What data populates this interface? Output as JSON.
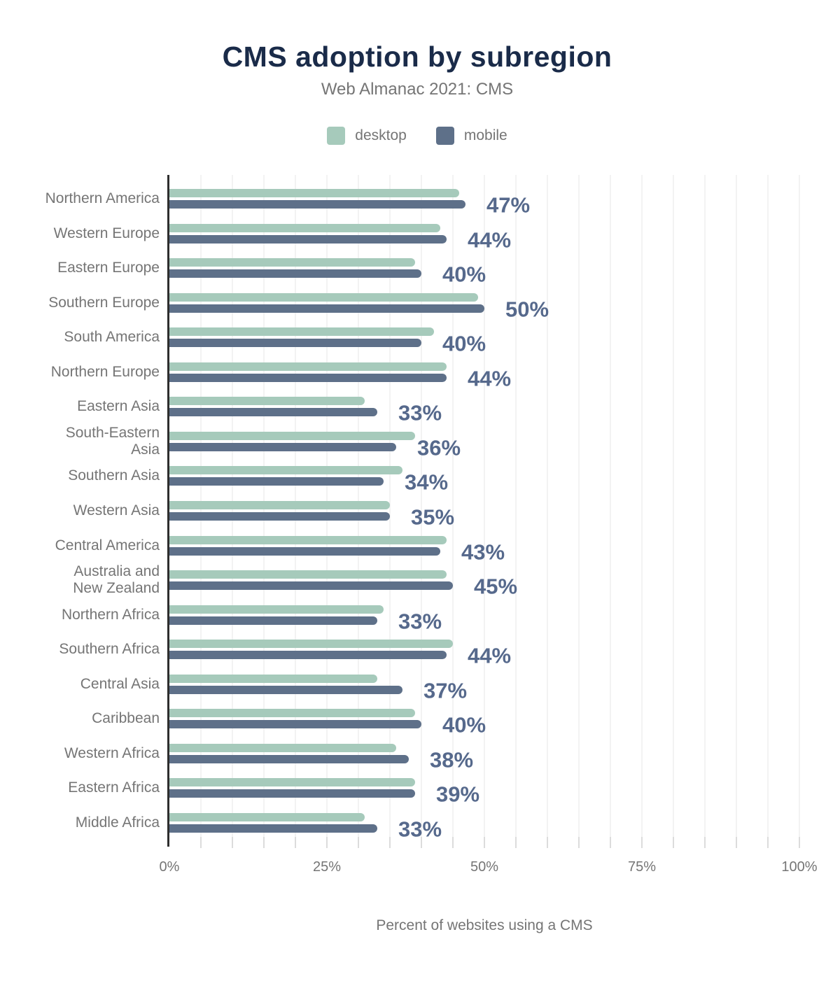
{
  "header": {
    "title": "CMS adoption by subregion",
    "subtitle": "Web Almanac 2021: CMS"
  },
  "chart_data": {
    "type": "bar",
    "orientation": "horizontal",
    "title": "CMS adoption by subregion",
    "subtitle": "Web Almanac 2021: CMS",
    "xlabel": "Percent of websites using a CMS",
    "xlim": [
      0,
      100
    ],
    "x_ticks": [
      0,
      25,
      50,
      75,
      100
    ],
    "x_tick_labels": [
      "0%",
      "25%",
      "50%",
      "75%",
      "100%"
    ],
    "grid_step": 5,
    "legend_position": "top",
    "categories": [
      "Northern America",
      "Western Europe",
      "Eastern Europe",
      "Southern Europe",
      "South America",
      "Northern Europe",
      "Eastern Asia",
      "South-Eastern\nAsia",
      "Southern Asia",
      "Western Asia",
      "Central America",
      "Australia and\nNew Zealand",
      "Northern Africa",
      "Southern Africa",
      "Central Asia",
      "Caribbean",
      "Western Africa",
      "Eastern Africa",
      "Middle Africa"
    ],
    "series": [
      {
        "name": "desktop",
        "color": "#a6cabb",
        "values": [
          46,
          43,
          39,
          49,
          42,
          44,
          31,
          39,
          37,
          35,
          44,
          44,
          34,
          45,
          33,
          39,
          36,
          39,
          31
        ]
      },
      {
        "name": "mobile",
        "color": "#5e7089",
        "values": [
          47,
          44,
          40,
          50,
          40,
          44,
          33,
          36,
          34,
          35,
          43,
          45,
          33,
          44,
          37,
          40,
          38,
          39,
          33
        ]
      }
    ],
    "value_labels": [
      "47%",
      "44%",
      "40%",
      "50%",
      "40%",
      "44%",
      "33%",
      "36%",
      "34%",
      "35%",
      "43%",
      "45%",
      "33%",
      "44%",
      "37%",
      "40%",
      "38%",
      "39%",
      "33%"
    ]
  },
  "legend": {
    "items": [
      {
        "label": "desktop",
        "color": "#a6cabb"
      },
      {
        "label": "mobile",
        "color": "#5e7089"
      }
    ]
  },
  "colors": {
    "title": "#1a2b49",
    "muted_text": "#757575",
    "value_label": "#56698c",
    "axis_line": "#2e2e2e",
    "gridline": "#f3f3f3"
  }
}
